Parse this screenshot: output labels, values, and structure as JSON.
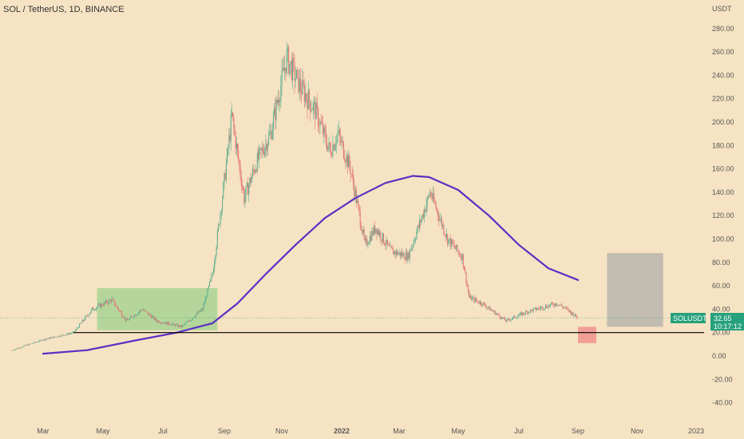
{
  "header": {
    "title": "SOL / TetherUS, 1D, BINANCE",
    "currency_label": "USDT"
  },
  "price_tag": {
    "symbol": "SOLUSDT",
    "price": "32.65",
    "timer": "10:17:12"
  },
  "colors": {
    "background": "#f6e3c3",
    "up_candle": "#5fb090",
    "down_candle": "#e27676",
    "ma_line": "#5b2fc4",
    "support_line": "#000000",
    "accumulation_box": "#9fd18c",
    "target_box": "#a8a8a8",
    "stop_box": "#f08c8c",
    "price_tag": "#26a17b"
  },
  "chart_data": {
    "type": "candlestick",
    "title": "SOL / TetherUS, 1D, BINANCE",
    "yaxis": {
      "ticks": [
        "280.00",
        "260.00",
        "240.00",
        "220.00",
        "200.00",
        "180.00",
        "160.00",
        "140.00",
        "120.00",
        "100.00",
        "80.00",
        "60.00",
        "40.00",
        "20.00",
        "0.00",
        "-20.00",
        "-40.00"
      ],
      "range": [
        -45,
        300
      ]
    },
    "xaxis": {
      "ticks": [
        "Mar",
        "May",
        "Jul",
        "Sep",
        "Nov",
        "2022",
        "Mar",
        "May",
        "Jul",
        "Sep",
        "Nov",
        "2023"
      ]
    },
    "price_series": [
      {
        "date": "2021-02-01",
        "value": 5
      },
      {
        "date": "2021-03-01",
        "value": 14
      },
      {
        "date": "2021-04-01",
        "value": 20
      },
      {
        "date": "2021-04-20",
        "value": 40
      },
      {
        "date": "2021-05-10",
        "value": 48
      },
      {
        "date": "2021-05-25",
        "value": 30
      },
      {
        "date": "2021-06-10",
        "value": 40
      },
      {
        "date": "2021-06-25",
        "value": 30
      },
      {
        "date": "2021-07-20",
        "value": 25
      },
      {
        "date": "2021-08-10",
        "value": 40
      },
      {
        "date": "2021-08-20",
        "value": 70
      },
      {
        "date": "2021-09-01",
        "value": 150
      },
      {
        "date": "2021-09-09",
        "value": 205
      },
      {
        "date": "2021-09-22",
        "value": 135
      },
      {
        "date": "2021-10-05",
        "value": 165
      },
      {
        "date": "2021-10-20",
        "value": 190
      },
      {
        "date": "2021-11-06",
        "value": 255
      },
      {
        "date": "2021-11-20",
        "value": 230
      },
      {
        "date": "2021-12-05",
        "value": 210
      },
      {
        "date": "2021-12-20",
        "value": 175
      },
      {
        "date": "2021-12-28",
        "value": 190
      },
      {
        "date": "2022-01-10",
        "value": 160
      },
      {
        "date": "2022-01-25",
        "value": 95
      },
      {
        "date": "2022-02-05",
        "value": 110
      },
      {
        "date": "2022-02-20",
        "value": 90
      },
      {
        "date": "2022-03-10",
        "value": 85
      },
      {
        "date": "2022-03-25",
        "value": 120
      },
      {
        "date": "2022-04-02",
        "value": 140
      },
      {
        "date": "2022-04-20",
        "value": 100
      },
      {
        "date": "2022-05-05",
        "value": 85
      },
      {
        "date": "2022-05-12",
        "value": 50
      },
      {
        "date": "2022-05-25",
        "value": 45
      },
      {
        "date": "2022-06-18",
        "value": 30
      },
      {
        "date": "2022-07-10",
        "value": 38
      },
      {
        "date": "2022-08-10",
        "value": 45
      },
      {
        "date": "2022-08-20",
        "value": 40
      },
      {
        "date": "2022-09-01",
        "value": 32.65
      }
    ],
    "moving_average": [
      {
        "date": "2021-03-01",
        "value": 2
      },
      {
        "date": "2021-04-15",
        "value": 5
      },
      {
        "date": "2021-06-01",
        "value": 13
      },
      {
        "date": "2021-07-15",
        "value": 20
      },
      {
        "date": "2021-08-20",
        "value": 28
      },
      {
        "date": "2021-09-15",
        "value": 45
      },
      {
        "date": "2021-10-15",
        "value": 70
      },
      {
        "date": "2021-11-15",
        "value": 95
      },
      {
        "date": "2021-12-15",
        "value": 118
      },
      {
        "date": "2022-01-15",
        "value": 135
      },
      {
        "date": "2022-02-15",
        "value": 148
      },
      {
        "date": "2022-03-15",
        "value": 154
      },
      {
        "date": "2022-04-01",
        "value": 153
      },
      {
        "date": "2022-05-01",
        "value": 142
      },
      {
        "date": "2022-06-01",
        "value": 120
      },
      {
        "date": "2022-07-01",
        "value": 95
      },
      {
        "date": "2022-08-01",
        "value": 75
      },
      {
        "date": "2022-09-01",
        "value": 65
      }
    ],
    "support_level": 20,
    "accumulation_zone": {
      "from": "2021-04-25",
      "to": "2021-08-25",
      "low": 22,
      "high": 58
    },
    "target_zone": {
      "from": "2022-10-01",
      "to": "2022-11-28",
      "low": 25,
      "high": 88
    },
    "stop_zone": {
      "from": "2022-09-01",
      "to": "2022-09-20",
      "low": 11,
      "high": 25
    }
  }
}
